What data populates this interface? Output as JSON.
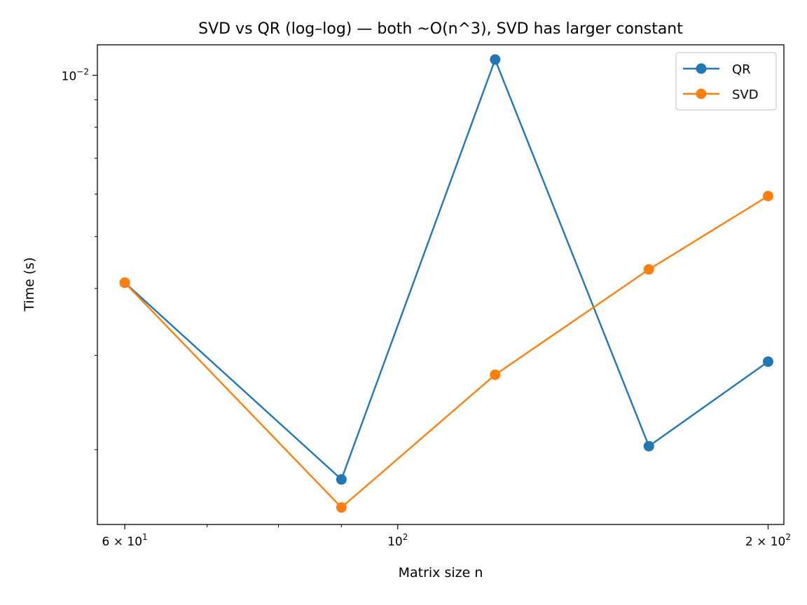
{
  "chart_data": {
    "type": "line",
    "title": "SVD vs QR (log–log) — both ~O(n^3), SVD has larger constant",
    "xlabel": "Matrix size n",
    "ylabel": "Time (s)",
    "xscale": "log",
    "yscale": "log",
    "xlim": [
      57,
      206
    ],
    "ylim": [
      0.00145,
      0.0114
    ],
    "grid": false,
    "legend_position": "top-right",
    "x": [
      60,
      90,
      120,
      160,
      200
    ],
    "series": [
      {
        "name": "QR",
        "color": "#1f77b4",
        "values": [
          0.0041,
          0.00176,
          0.0107,
          0.00203,
          0.00292
        ]
      },
      {
        "name": "SVD",
        "color": "#ff7f0e",
        "values": [
          0.0041,
          0.00156,
          0.00276,
          0.00434,
          0.00595
        ]
      }
    ],
    "x_ticks": [
      {
        "value": 60,
        "label": "6 × 10",
        "exp": "1"
      },
      {
        "value": 100,
        "label": "10",
        "exp": "2"
      },
      {
        "value": 200,
        "label": "2 × 10",
        "exp": "2"
      }
    ],
    "x_minor_ticks": [
      70,
      80,
      90
    ],
    "y_ticks": [
      {
        "value": 0.01,
        "label": "10",
        "exp": "−2"
      }
    ],
    "y_minor_ticks": [
      0.002,
      0.003,
      0.004,
      0.005,
      0.006,
      0.007,
      0.008,
      0.009
    ]
  }
}
